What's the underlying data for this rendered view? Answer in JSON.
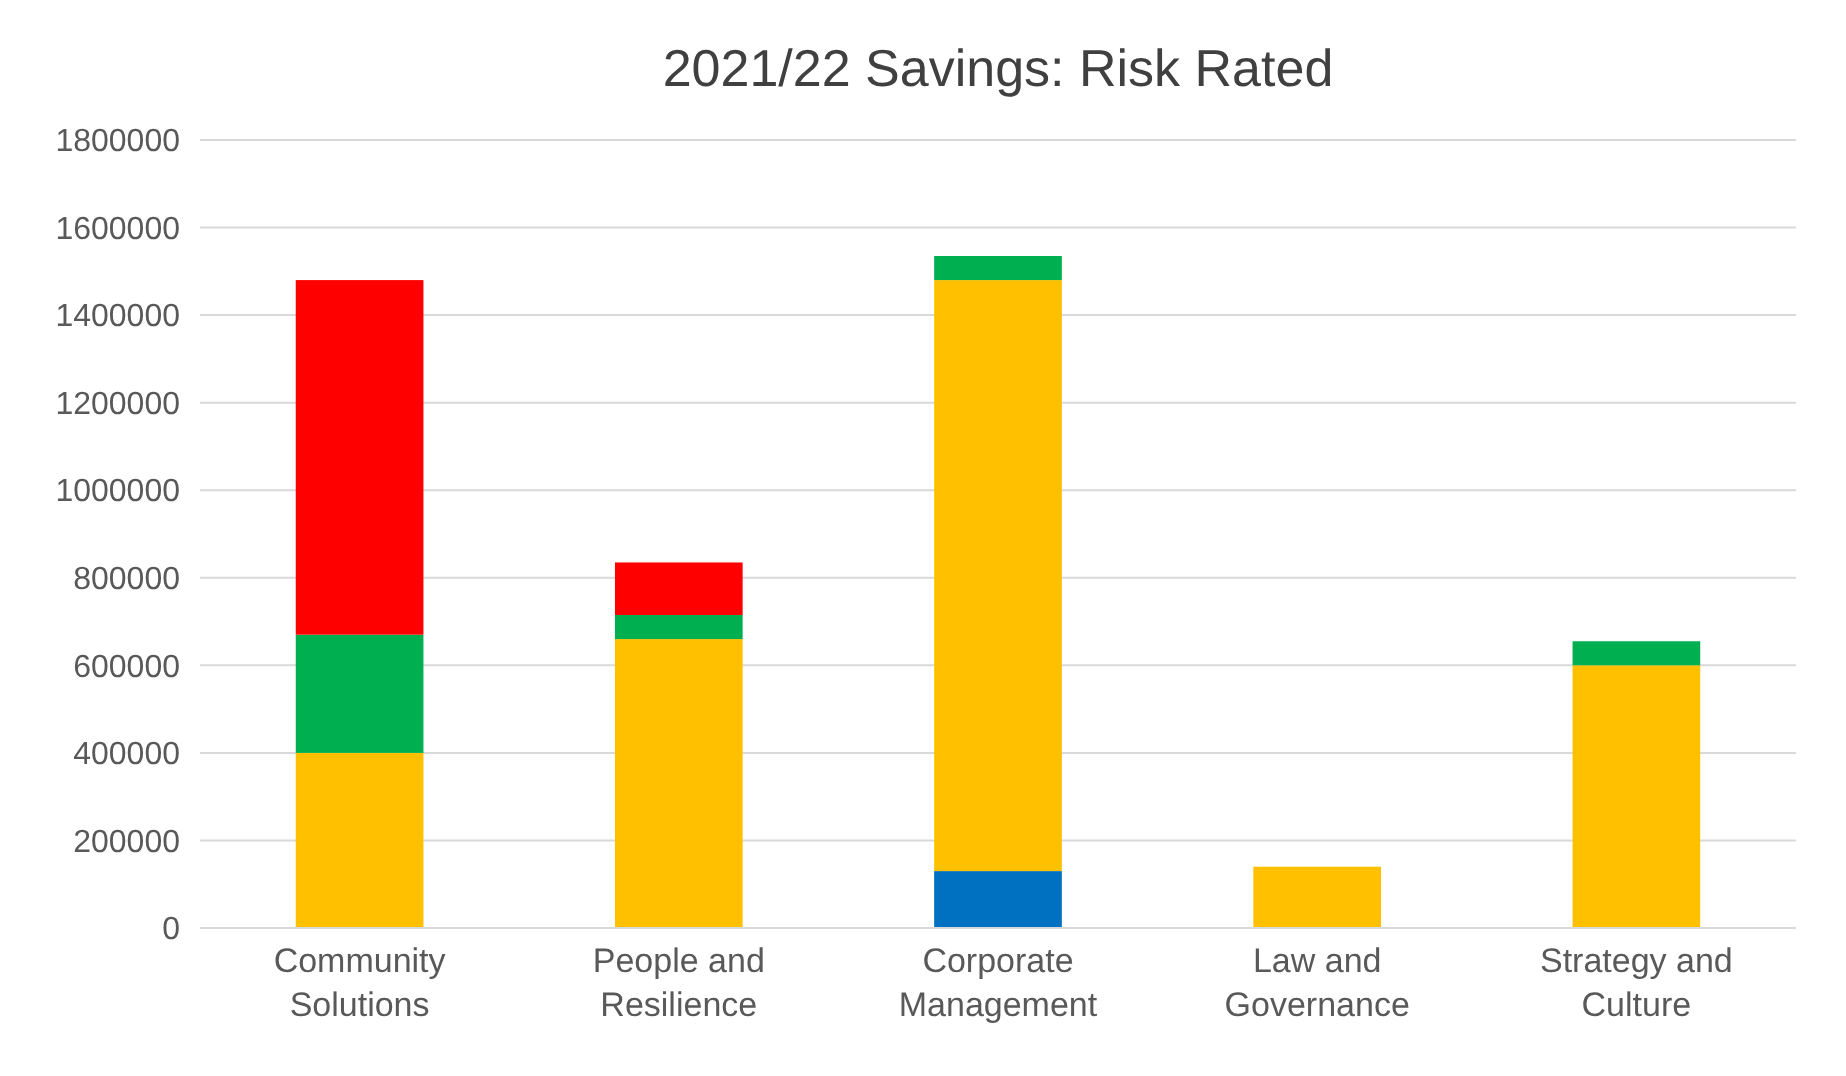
{
  "chart_data": {
    "type": "bar",
    "title": "2021/22 Savings: Risk Rated",
    "stacked": true,
    "grid": "y",
    "categories": [
      "Community Solutions",
      "People and Resilience",
      "Corporate Management",
      "Law and Governance",
      "Strategy and Culture"
    ],
    "series": [
      {
        "color": "#0070c0",
        "values": [
          null,
          null,
          130000,
          null,
          null
        ]
      },
      {
        "color": "#ffc000",
        "values": [
          400000,
          660000,
          1350000,
          140000,
          600000
        ]
      },
      {
        "color": "#00b050",
        "values": [
          270000,
          55000,
          55000,
          null,
          55000
        ]
      },
      {
        "color": "#ff0000",
        "values": [
          810000,
          120000,
          null,
          null,
          null
        ]
      }
    ],
    "ylim": [
      0,
      1800000
    ],
    "yticks": [
      0,
      200000,
      400000,
      600000,
      800000,
      1000000,
      1200000,
      1400000,
      1600000,
      1800000
    ]
  }
}
